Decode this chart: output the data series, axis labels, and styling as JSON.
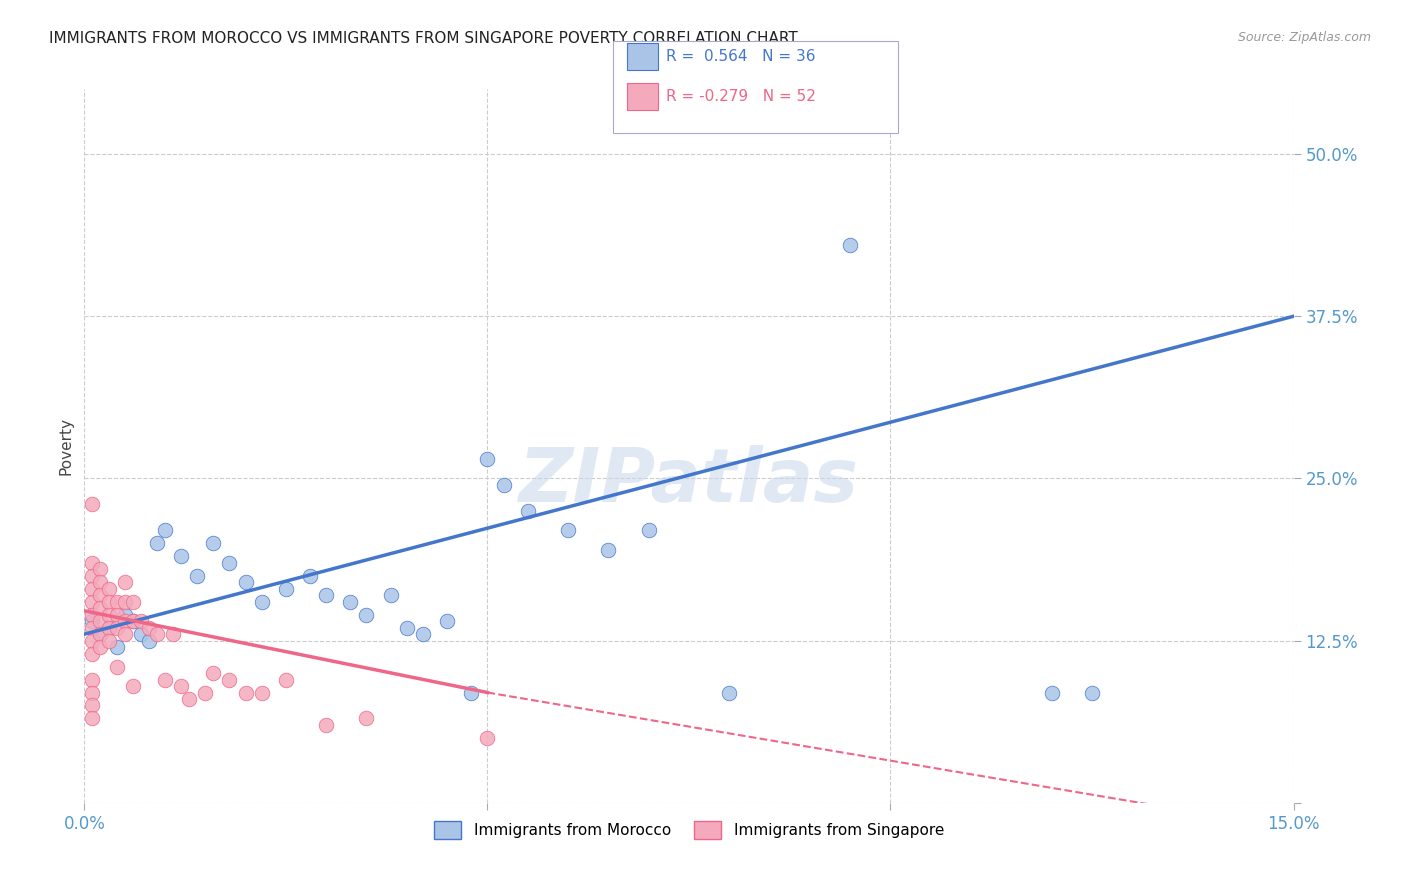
{
  "title": "IMMIGRANTS FROM MOROCCO VS IMMIGRANTS FROM SINGAPORE POVERTY CORRELATION CHART",
  "source": "Source: ZipAtlas.com",
  "ylabel_label": "Poverty",
  "x_min": 0.0,
  "x_max": 0.15,
  "y_min": 0.0,
  "y_max": 0.55,
  "x_ticks": [
    0.0,
    0.05,
    0.1,
    0.15
  ],
  "x_tick_labels": [
    "0.0%",
    "",
    "",
    "15.0%"
  ],
  "y_ticks": [
    0.0,
    0.125,
    0.25,
    0.375,
    0.5
  ],
  "y_tick_labels": [
    "",
    "12.5%",
    "25.0%",
    "37.5%",
    "50.0%"
  ],
  "watermark": "ZIPatlas",
  "legend_r_morocco": "0.564",
  "legend_n_morocco": "36",
  "legend_r_singapore": "-0.279",
  "legend_n_singapore": "52",
  "morocco_color": "#aac4e8",
  "singapore_color": "#f4aabc",
  "morocco_line_color": "#4477cc",
  "singapore_line_color": "#ee6688",
  "morocco_scatter": [
    [
      0.001,
      0.14
    ],
    [
      0.002,
      0.13
    ],
    [
      0.003,
      0.135
    ],
    [
      0.004,
      0.12
    ],
    [
      0.005,
      0.145
    ],
    [
      0.006,
      0.14
    ],
    [
      0.007,
      0.13
    ],
    [
      0.008,
      0.125
    ],
    [
      0.009,
      0.2
    ],
    [
      0.01,
      0.21
    ],
    [
      0.012,
      0.19
    ],
    [
      0.014,
      0.175
    ],
    [
      0.016,
      0.2
    ],
    [
      0.018,
      0.185
    ],
    [
      0.02,
      0.17
    ],
    [
      0.022,
      0.155
    ],
    [
      0.025,
      0.165
    ],
    [
      0.028,
      0.175
    ],
    [
      0.03,
      0.16
    ],
    [
      0.033,
      0.155
    ],
    [
      0.035,
      0.145
    ],
    [
      0.038,
      0.16
    ],
    [
      0.04,
      0.135
    ],
    [
      0.042,
      0.13
    ],
    [
      0.045,
      0.14
    ],
    [
      0.048,
      0.085
    ],
    [
      0.05,
      0.265
    ],
    [
      0.052,
      0.245
    ],
    [
      0.055,
      0.225
    ],
    [
      0.06,
      0.21
    ],
    [
      0.065,
      0.195
    ],
    [
      0.07,
      0.21
    ],
    [
      0.08,
      0.085
    ],
    [
      0.095,
      0.43
    ],
    [
      0.12,
      0.085
    ],
    [
      0.125,
      0.085
    ]
  ],
  "singapore_scatter": [
    [
      0.001,
      0.23
    ],
    [
      0.001,
      0.185
    ],
    [
      0.001,
      0.175
    ],
    [
      0.001,
      0.165
    ],
    [
      0.001,
      0.155
    ],
    [
      0.001,
      0.145
    ],
    [
      0.001,
      0.135
    ],
    [
      0.001,
      0.125
    ],
    [
      0.001,
      0.115
    ],
    [
      0.001,
      0.095
    ],
    [
      0.001,
      0.085
    ],
    [
      0.001,
      0.075
    ],
    [
      0.001,
      0.065
    ],
    [
      0.002,
      0.18
    ],
    [
      0.002,
      0.17
    ],
    [
      0.002,
      0.16
    ],
    [
      0.002,
      0.15
    ],
    [
      0.002,
      0.14
    ],
    [
      0.002,
      0.13
    ],
    [
      0.002,
      0.12
    ],
    [
      0.003,
      0.165
    ],
    [
      0.003,
      0.155
    ],
    [
      0.003,
      0.145
    ],
    [
      0.003,
      0.135
    ],
    [
      0.003,
      0.125
    ],
    [
      0.004,
      0.155
    ],
    [
      0.004,
      0.145
    ],
    [
      0.004,
      0.135
    ],
    [
      0.004,
      0.105
    ],
    [
      0.005,
      0.17
    ],
    [
      0.005,
      0.155
    ],
    [
      0.005,
      0.14
    ],
    [
      0.005,
      0.13
    ],
    [
      0.006,
      0.155
    ],
    [
      0.006,
      0.14
    ],
    [
      0.006,
      0.09
    ],
    [
      0.007,
      0.14
    ],
    [
      0.008,
      0.135
    ],
    [
      0.009,
      0.13
    ],
    [
      0.01,
      0.095
    ],
    [
      0.011,
      0.13
    ],
    [
      0.012,
      0.09
    ],
    [
      0.013,
      0.08
    ],
    [
      0.015,
      0.085
    ],
    [
      0.016,
      0.1
    ],
    [
      0.018,
      0.095
    ],
    [
      0.02,
      0.085
    ],
    [
      0.022,
      0.085
    ],
    [
      0.025,
      0.095
    ],
    [
      0.03,
      0.06
    ],
    [
      0.035,
      0.065
    ],
    [
      0.05,
      0.05
    ]
  ],
  "background_color": "#ffffff",
  "grid_color": "#cccccc",
  "title_fontsize": 11,
  "tick_label_color": "#5599cc"
}
